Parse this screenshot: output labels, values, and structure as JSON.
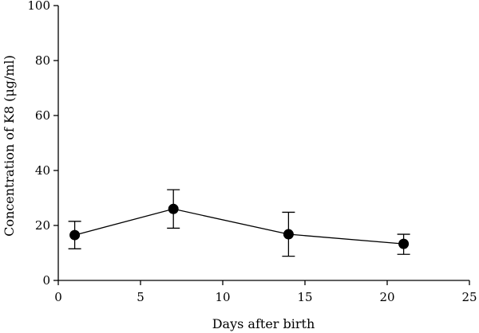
{
  "chart_data": {
    "type": "line",
    "title": "",
    "xlabel": "Days after birth",
    "ylabel": "Concentration of K8 (μg/ml)",
    "xlim": [
      0,
      25
    ],
    "ylim": [
      0,
      100
    ],
    "x_ticks": [
      0,
      5,
      10,
      15,
      20,
      25
    ],
    "y_ticks": [
      0,
      20,
      40,
      60,
      80,
      100
    ],
    "grid": false,
    "legend": "none",
    "series": [
      {
        "x": [
          1,
          7,
          14,
          21
        ],
        "y": [
          16.5,
          26,
          16.8,
          13.3
        ],
        "error_low": [
          11.5,
          19,
          8.8,
          9.5
        ],
        "error_high": [
          21.5,
          33,
          24.8,
          16.8
        ],
        "color": "#000000",
        "marker": "filled-circle"
      }
    ]
  }
}
